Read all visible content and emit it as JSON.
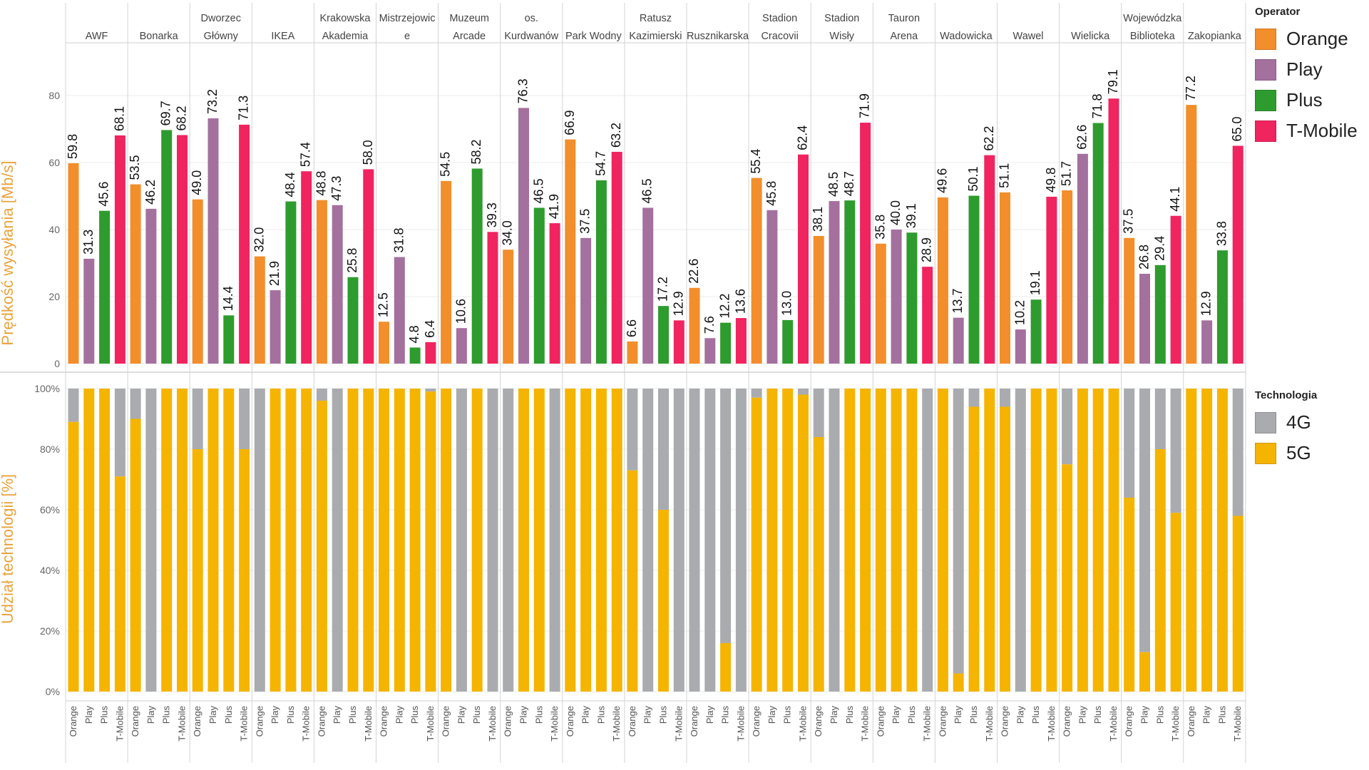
{
  "chart_data": [
    {
      "type": "bar",
      "ylabel": "Prędkość wysyłania [Mb/s]",
      "ylim": [
        0,
        100
      ],
      "yticks": [
        0,
        20,
        40,
        60,
        80
      ],
      "grid": true,
      "legend_title": "Operator",
      "legend_position": "right",
      "categories": [
        "AWF",
        "Bonarka",
        "Dworzec Główny",
        "IKEA",
        "Krakowska Akademia",
        "Mistrzejowice",
        "Muzeum Arcade",
        "os. Kurdwanów",
        "Park Wodny",
        "Ratusz Kazimierski",
        "Rusznikarska",
        "Stadion Cracovii",
        "Stadion Wisły",
        "Tauron Arena",
        "Wadowicka",
        "Wawel",
        "Wielicka",
        "Wojewódzka Biblioteka",
        "Zakopianka"
      ],
      "category_label_lines": [
        [
          "AWF"
        ],
        [
          "Bonarka"
        ],
        [
          "Dworzec",
          "Główny"
        ],
        [
          "IKEA"
        ],
        [
          "Krakowska",
          "Akademia"
        ],
        [
          "Mistrzejowic",
          "e"
        ],
        [
          "Muzeum",
          "Arcade"
        ],
        [
          "os.",
          "Kurdwanów"
        ],
        [
          "Park Wodny"
        ],
        [
          "Ratusz",
          "Kazimierski"
        ],
        [
          "Rusznikarska"
        ],
        [
          "Stadion",
          "Cracovii"
        ],
        [
          "Stadion",
          "Wisły"
        ],
        [
          "Tauron",
          "Arena"
        ],
        [
          "Wadowicka"
        ],
        [
          "Wawel"
        ],
        [
          "Wielicka"
        ],
        [
          "Wojewódzka",
          "Biblioteka"
        ],
        [
          "Zakopianka"
        ]
      ],
      "series": [
        {
          "name": "Orange",
          "color": "#F28E2B",
          "values": [
            59.8,
            53.5,
            49.0,
            32.0,
            48.8,
            12.5,
            54.5,
            34.0,
            66.9,
            6.6,
            22.6,
            55.4,
            38.1,
            35.8,
            49.6,
            51.1,
            51.7,
            37.5,
            77.2
          ]
        },
        {
          "name": "Play",
          "color": "#A4709E",
          "values": [
            31.3,
            46.2,
            73.2,
            21.9,
            47.3,
            31.8,
            10.6,
            76.3,
            37.5,
            46.5,
            7.6,
            45.8,
            48.5,
            40.0,
            13.7,
            10.2,
            62.6,
            26.8,
            12.9
          ]
        },
        {
          "name": "Plus",
          "color": "#2E9B2E",
          "values": [
            45.6,
            69.7,
            14.4,
            48.4,
            25.8,
            4.8,
            58.2,
            46.5,
            54.7,
            17.2,
            12.2,
            13.0,
            48.7,
            39.1,
            50.1,
            19.1,
            71.8,
            29.4,
            33.8
          ]
        },
        {
          "name": "T-Mobile",
          "color": "#F0245F",
          "values": [
            68.1,
            68.2,
            71.3,
            57.4,
            58.0,
            6.4,
            39.3,
            41.9,
            63.2,
            12.9,
            13.6,
            62.4,
            71.9,
            28.9,
            62.2,
            49.8,
            79.1,
            44.1,
            65.0
          ]
        }
      ],
      "value_labels": [
        [
          "59.8",
          "31.3",
          "45.6",
          "68.1"
        ],
        [
          "53.5",
          "46.2",
          "69.7",
          "68.2"
        ],
        [
          "49.0",
          "73.2",
          "14.4",
          "71.3"
        ],
        [
          "32.0",
          "21.9",
          "48.4",
          "57.4"
        ],
        [
          "48.8",
          "47.3",
          "25.8",
          "58.0"
        ],
        [
          "12.5",
          "31.8",
          "4.8",
          "6.4"
        ],
        [
          "54.5",
          "10.6",
          "58.2",
          "39.3"
        ],
        [
          "34.0",
          "76.3",
          "46.5",
          "41.9"
        ],
        [
          "66.9",
          "37.5",
          "54.7",
          "63.2"
        ],
        [
          "6.6",
          "46.5",
          "17.2",
          "12.9"
        ],
        [
          "22.6",
          "7.6",
          "12.2",
          "13.6"
        ],
        [
          "55.4",
          "45.8",
          "13.0",
          "62.4"
        ],
        [
          "38.1",
          "48.5",
          "48.7",
          "71.9"
        ],
        [
          "35.8",
          "40.0",
          "39.1",
          "28.9"
        ],
        [
          "49.6",
          "13.7",
          "50.1",
          "62.2"
        ],
        [
          "51.1",
          "10.2",
          "19.1",
          "49.8"
        ],
        [
          "51.7",
          "62.6",
          "71.8",
          "79.1"
        ],
        [
          "37.5",
          "26.8",
          "29.4",
          "44.1"
        ],
        [
          "77.2",
          "12.9",
          "33.8",
          "65.0"
        ]
      ],
      "ytick_labels": [
        "0",
        "20",
        "40",
        "60",
        "80"
      ]
    },
    {
      "type": "bar",
      "stacked": true,
      "ylabel": "Udział technologii [%]",
      "ylim": [
        0,
        100
      ],
      "yticks": [
        0,
        20,
        40,
        60,
        80,
        100
      ],
      "ytick_labels": [
        "0%",
        "20%",
        "40%",
        "60%",
        "80%",
        "100%"
      ],
      "legend_title": "Technologia",
      "legend_position": "right",
      "x_tick_labels": [
        "Orange",
        "Play",
        "Plus",
        "T-Mobile"
      ],
      "series": [
        {
          "name": "4G",
          "color": "#A9ABAE"
        },
        {
          "name": "5G",
          "color": "#F5B400"
        }
      ],
      "share_5g_percent": [
        [
          89,
          100,
          100,
          71
        ],
        [
          90,
          0,
          100,
          100
        ],
        [
          80,
          100,
          100,
          80
        ],
        [
          0,
          100,
          100,
          100
        ],
        [
          96,
          0,
          100,
          100
        ],
        [
          100,
          100,
          100,
          99
        ],
        [
          100,
          0,
          100,
          0
        ],
        [
          0,
          100,
          100,
          0
        ],
        [
          100,
          100,
          100,
          100
        ],
        [
          73,
          0,
          60,
          0
        ],
        [
          0,
          0,
          16,
          0
        ],
        [
          97,
          100,
          100,
          98
        ],
        [
          84,
          0,
          100,
          100
        ],
        [
          100,
          100,
          100,
          0
        ],
        [
          100,
          6,
          94,
          100
        ],
        [
          94,
          0,
          100,
          100
        ],
        [
          75,
          100,
          100,
          100
        ],
        [
          64,
          13,
          80,
          59
        ],
        [
          100,
          100,
          100,
          58
        ]
      ]
    }
  ]
}
